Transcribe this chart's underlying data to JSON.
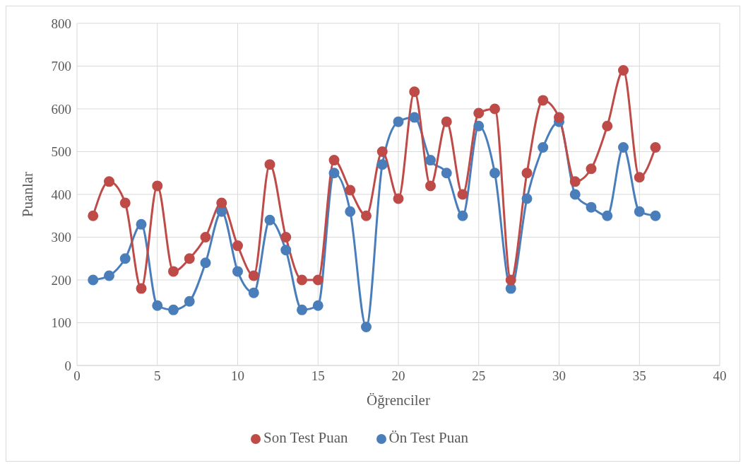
{
  "chart_data": {
    "type": "line",
    "xlabel": "Öğrenciler",
    "ylabel": "Puanlar",
    "x": [
      1,
      2,
      3,
      4,
      5,
      6,
      7,
      8,
      9,
      10,
      11,
      12,
      13,
      14,
      15,
      16,
      17,
      18,
      19,
      20,
      21,
      22,
      23,
      24,
      25,
      26,
      27,
      28,
      29,
      30,
      31,
      32,
      33,
      34,
      35,
      36
    ],
    "series": [
      {
        "name": "Ön Test Puan",
        "color": "#4a7ebb",
        "values": [
          200,
          210,
          250,
          330,
          140,
          130,
          150,
          240,
          360,
          220,
          170,
          340,
          270,
          130,
          140,
          450,
          360,
          90,
          470,
          570,
          580,
          480,
          450,
          350,
          560,
          450,
          180,
          390,
          510,
          570,
          400,
          370,
          350,
          510,
          360,
          350
        ]
      },
      {
        "name": "Son Test Puan",
        "color": "#be4b48",
        "values": [
          350,
          430,
          380,
          180,
          420,
          220,
          250,
          300,
          380,
          280,
          210,
          470,
          300,
          200,
          200,
          480,
          410,
          350,
          500,
          390,
          640,
          420,
          570,
          400,
          590,
          600,
          200,
          450,
          620,
          580,
          430,
          460,
          560,
          690,
          440,
          510
        ]
      }
    ],
    "xlim": [
      0,
      40
    ],
    "xticks": [
      0,
      5,
      10,
      15,
      20,
      25,
      30,
      35,
      40
    ],
    "ylim": [
      0,
      800
    ],
    "yticks": [
      0,
      100,
      200,
      300,
      400,
      500,
      600,
      700,
      800
    ],
    "grid": true,
    "legend": "bottom",
    "marker": "circle",
    "line_style": "solid"
  }
}
